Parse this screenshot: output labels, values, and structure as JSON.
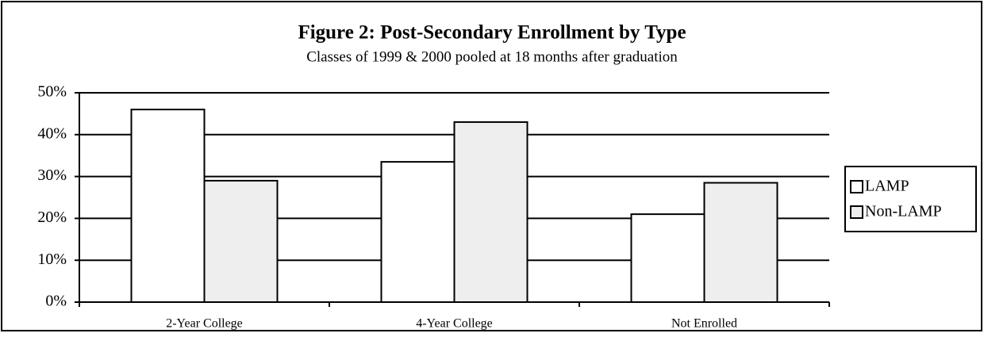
{
  "chart_data": {
    "type": "bar",
    "title": "Figure 2: Post-Secondary Enrollment by Type",
    "subtitle": "Classes of 1999 & 2000 pooled at 18 months after graduation",
    "categories": [
      "2-Year College",
      "4-Year College",
      "Not Enrolled"
    ],
    "series": [
      {
        "name": "LAMP",
        "color": "#ffffff",
        "values": [
          46,
          33.5,
          21
        ]
      },
      {
        "name": "Non-LAMP",
        "color": "#eeeeee",
        "values": [
          29,
          43,
          28.5
        ]
      }
    ],
    "ylim": [
      0,
      50
    ],
    "yticks": [
      {
        "value": 0,
        "label": "0%"
      },
      {
        "value": 10,
        "label": "10%"
      },
      {
        "value": 20,
        "label": "20%"
      },
      {
        "value": 30,
        "label": "30%"
      },
      {
        "value": 40,
        "label": "40%"
      },
      {
        "value": 50,
        "label": "50%"
      }
    ],
    "grid": true,
    "legend": "right"
  }
}
